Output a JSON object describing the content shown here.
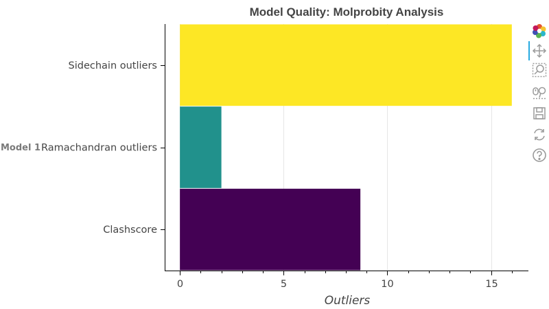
{
  "chart_data": {
    "type": "bar",
    "orientation": "horizontal",
    "title": "Model Quality: Molprobity Analysis",
    "group_label": "Model 1",
    "categories": [
      "Clashscore",
      "Ramachandran outliers",
      "Sidechain outliers"
    ],
    "values": [
      8.7,
      2,
      16
    ],
    "colors": [
      "#440154",
      "#21918c",
      "#fde725"
    ],
    "xlabel": "Outliers",
    "ylabel": "",
    "xlim": [
      -0.7,
      16.8
    ],
    "xticks": [
      0,
      5,
      10,
      15
    ],
    "xtick_labels": [
      "0",
      "5",
      "10",
      "15"
    ],
    "grid": "vertical",
    "legend": "none"
  },
  "toolbar": {
    "tools": [
      {
        "icon": "bokeh-logo-icon",
        "label": "Bokeh"
      },
      {
        "icon": "pan-icon",
        "label": "Pan"
      },
      {
        "icon": "box-zoom-icon",
        "label": "Box Zoom"
      },
      {
        "icon": "wheel-zoom-icon",
        "label": "Wheel Zoom"
      },
      {
        "icon": "save-icon",
        "label": "Save"
      },
      {
        "icon": "reset-icon",
        "label": "Reset"
      },
      {
        "icon": "help-icon",
        "label": "Help"
      }
    ],
    "accent": "#26aae1"
  }
}
